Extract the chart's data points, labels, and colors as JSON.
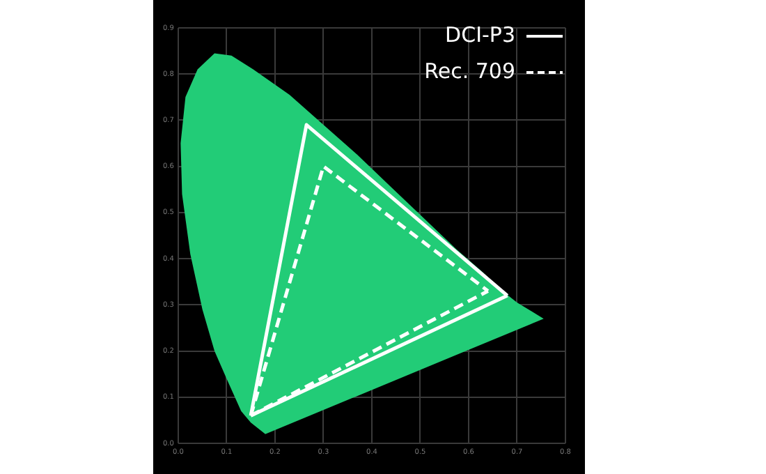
{
  "chart_data": {
    "type": "line",
    "xlim": [
      0,
      0.8
    ],
    "ylim": [
      0,
      0.9
    ],
    "xticks": [
      {
        "value": 0,
        "label": "0.0"
      },
      0.1,
      0.2,
      0.3,
      0.4,
      0.5,
      0.6,
      0.7,
      0.8
    ],
    "yticks": [
      {
        "value": 0,
        "label": "0.0"
      },
      0.1,
      0.2,
      0.3,
      0.4,
      0.5,
      0.6,
      0.7,
      0.8,
      0.9
    ],
    "grid": true,
    "legend": "top right",
    "marker": "none",
    "series": [
      {
        "type": "area",
        "color": "#22cc77",
        "x": [
          0.18,
          0.15,
          0.13,
          0.1,
          0.075,
          0.05,
          0.025,
          0.008,
          0.005,
          0.015,
          0.04,
          0.075,
          0.11,
          0.155,
          0.23,
          0.3,
          0.37,
          0.44,
          0.51,
          0.575,
          0.63,
          0.67,
          0.7,
          0.755,
          0.18
        ],
        "values": [
          0.02,
          0.045,
          0.07,
          0.14,
          0.2,
          0.29,
          0.41,
          0.54,
          0.65,
          0.75,
          0.81,
          0.845,
          0.84,
          0.81,
          0.755,
          0.69,
          0.625,
          0.555,
          0.485,
          0.42,
          0.37,
          0.33,
          0.305,
          0.27,
          0.02
        ]
      },
      {
        "name": "DCI-P3",
        "color": "#ffffff",
        "line_style": "solid",
        "x": [
          0.15,
          0.265,
          0.68
        ],
        "values": [
          0.06,
          0.69,
          0.32
        ]
      },
      {
        "color": "#ffffff",
        "line_style": "solid",
        "x": [
          0.15,
          0.68
        ],
        "values": [
          0.06,
          0.32
        ]
      },
      {
        "name": "Rec. 709",
        "color": "#ffffff",
        "line_style": "dashed",
        "x": [
          0.15,
          0.3,
          0.64
        ],
        "values": [
          0.06,
          0.6,
          0.33
        ]
      },
      {
        "color": "#ffffff",
        "line_style": "dashed",
        "x": [
          0.15,
          0.64
        ],
        "values": [
          0.06,
          0.33
        ]
      }
    ]
  }
}
